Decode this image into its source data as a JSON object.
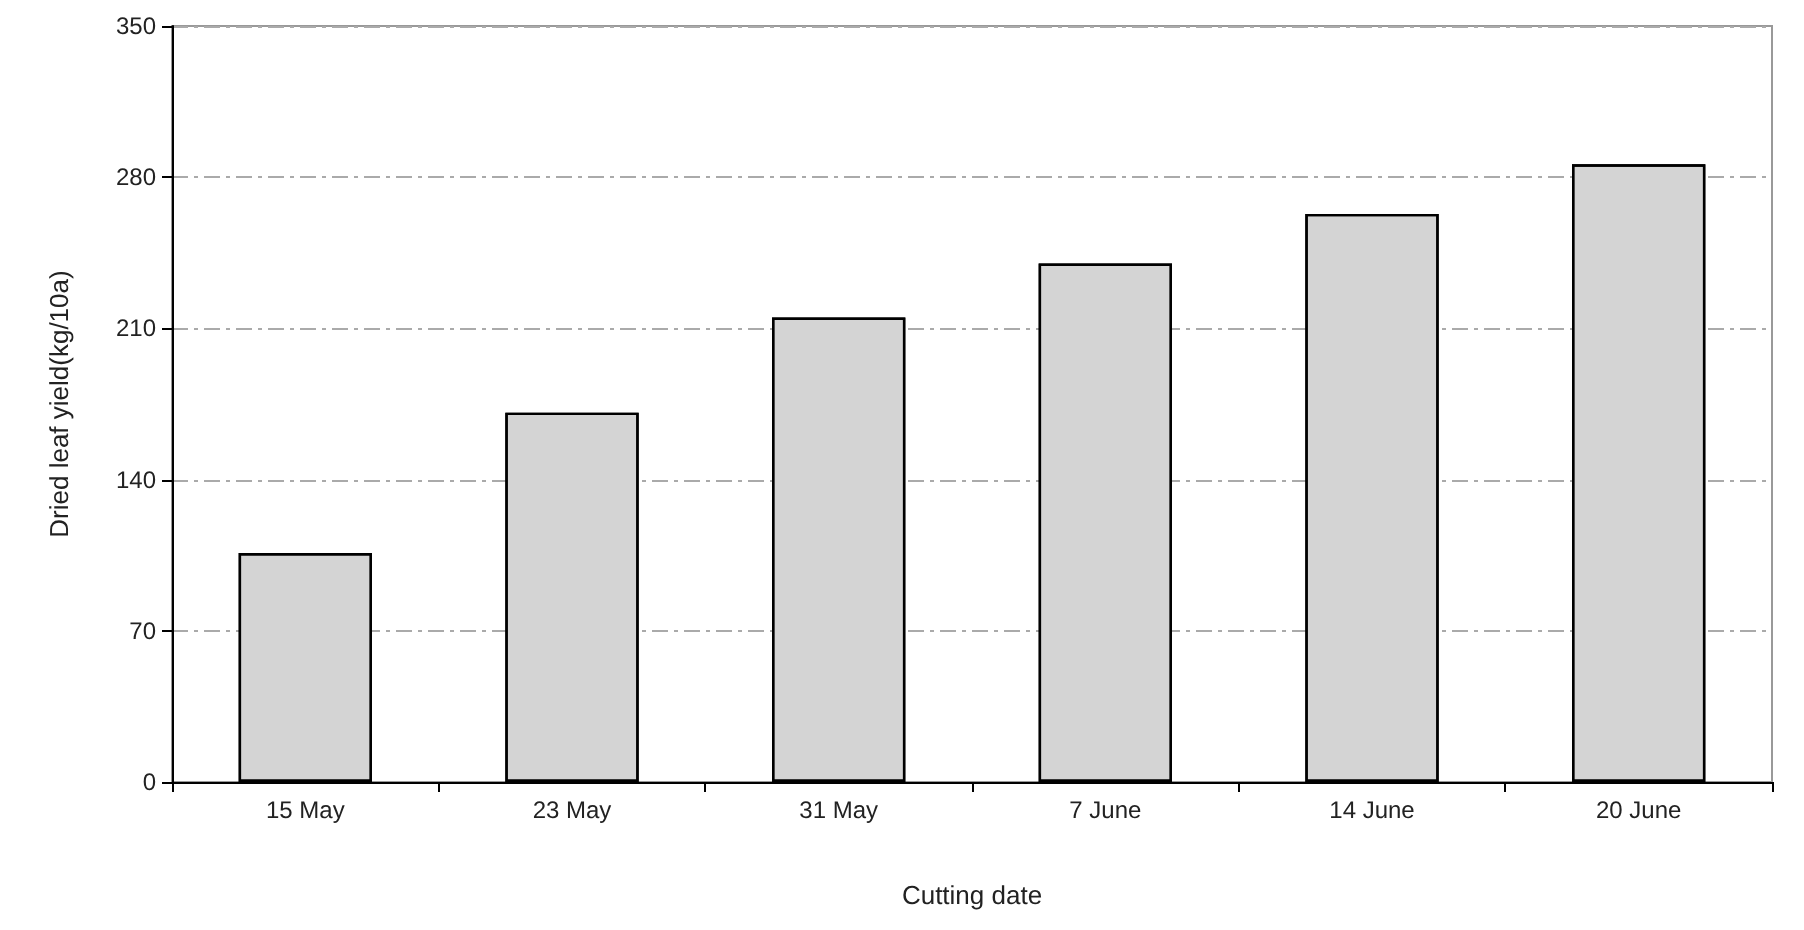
{
  "chart_data": {
    "type": "bar",
    "xlabel": "Cutting date",
    "ylabel": "Dried leaf yield(kg/10a)",
    "categories": [
      "15 May",
      "23 May",
      "31 May",
      "7 June",
      "14 June",
      "20 June"
    ],
    "values": [
      106,
      171,
      215,
      240,
      263,
      286
    ],
    "color": "#d4d4d4",
    "ylim": [
      0,
      350
    ],
    "yticks": [
      0,
      70,
      140,
      210,
      280,
      350
    ],
    "grid": "y"
  }
}
